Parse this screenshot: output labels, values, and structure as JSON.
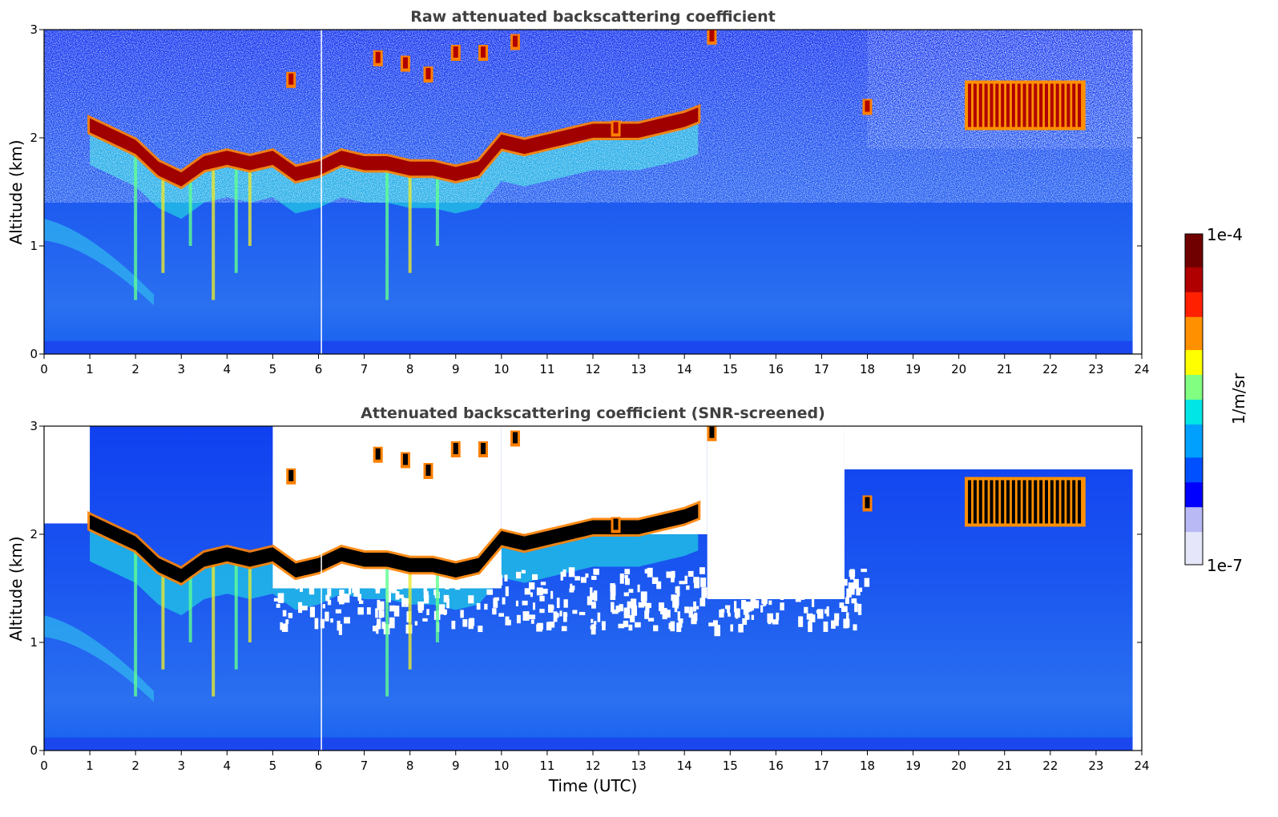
{
  "colors": {
    "colormap": [
      "#e6e6fa",
      "#b9b9f5",
      "#0000ff",
      "#0050ff",
      "#00a0ff",
      "#00e6e6",
      "#80ff80",
      "#ffff00",
      "#ff9000",
      "#ff2000",
      "#b00000",
      "#700000"
    ],
    "detection": "#000000"
  },
  "chart_data": [
    {
      "type": "heatmap",
      "title": "Raw attenuated backscattering coefficient",
      "xlabel": "",
      "ylabel": "Altitude (km)",
      "xlim": [
        0,
        24
      ],
      "ylim": [
        0,
        3
      ],
      "x_ticks": [
        "0",
        "1",
        "2",
        "3",
        "4",
        "5",
        "6",
        "7",
        "8",
        "9",
        "10",
        "11",
        "12",
        "13",
        "14",
        "15",
        "16",
        "17",
        "18",
        "19",
        "20",
        "21",
        "22",
        "23",
        "24"
      ],
      "y_ticks": [
        "0",
        "1",
        "2",
        "3"
      ],
      "colorbar": {
        "label": "1/m/sr",
        "min_label": "1e-7",
        "max_label": "1e-4",
        "scale": "log"
      },
      "cloud_base_km": [
        [
          1.0,
          2.1
        ],
        [
          1.5,
          2.0
        ],
        [
          2.0,
          1.9
        ],
        [
          2.5,
          1.7
        ],
        [
          3.0,
          1.6
        ],
        [
          3.5,
          1.75
        ],
        [
          4.0,
          1.8
        ],
        [
          4.5,
          1.75
        ],
        [
          5.0,
          1.8
        ],
        [
          5.5,
          1.65
        ],
        [
          6.0,
          1.7
        ],
        [
          6.5,
          1.8
        ],
        [
          7.0,
          1.75
        ],
        [
          7.5,
          1.75
        ],
        [
          8.0,
          1.7
        ],
        [
          8.5,
          1.7
        ],
        [
          9.0,
          1.65
        ],
        [
          9.5,
          1.7
        ],
        [
          10.0,
          1.95
        ],
        [
          10.5,
          1.9
        ],
        [
          11.0,
          1.95
        ],
        [
          11.5,
          2.0
        ],
        [
          12.0,
          2.05
        ],
        [
          12.5,
          2.05
        ],
        [
          13.0,
          2.05
        ],
        [
          13.5,
          2.1
        ],
        [
          14.0,
          2.15
        ],
        [
          14.3,
          2.2
        ]
      ],
      "upper_cloud": {
        "time_start": 20.2,
        "time_end": 22.7,
        "base_km": 2.1,
        "top_km": 2.5
      }
    },
    {
      "type": "heatmap",
      "title": "Attenuated backscattering coefficient (SNR-screened)",
      "xlabel": "Time (UTC)",
      "ylabel": "Altitude (km)",
      "xlim": [
        0,
        24
      ],
      "ylim": [
        0,
        3
      ],
      "x_ticks": [
        "0",
        "1",
        "2",
        "3",
        "4",
        "5",
        "6",
        "7",
        "8",
        "9",
        "10",
        "11",
        "12",
        "13",
        "14",
        "15",
        "16",
        "17",
        "18",
        "19",
        "20",
        "21",
        "22",
        "23",
        "24"
      ],
      "y_ticks": [
        "0",
        "1",
        "2",
        "3"
      ],
      "screened_regions": [
        {
          "time_start": 5.0,
          "time_end": 10.0,
          "alt_start_km": 1.5,
          "alt_end_km": 3.0
        },
        {
          "time_start": 10.0,
          "time_end": 14.5,
          "alt_start_km": 2.0,
          "alt_end_km": 3.0
        },
        {
          "time_start": 14.5,
          "time_end": 17.5,
          "alt_start_km": 1.4,
          "alt_end_km": 3.0
        },
        {
          "time_start": 17.5,
          "time_end": 24.0,
          "alt_start_km": 2.6,
          "alt_end_km": 3.0
        },
        {
          "time_start": 0.0,
          "time_end": 1.0,
          "alt_start_km": 2.1,
          "alt_end_km": 3.0
        }
      ]
    }
  ]
}
